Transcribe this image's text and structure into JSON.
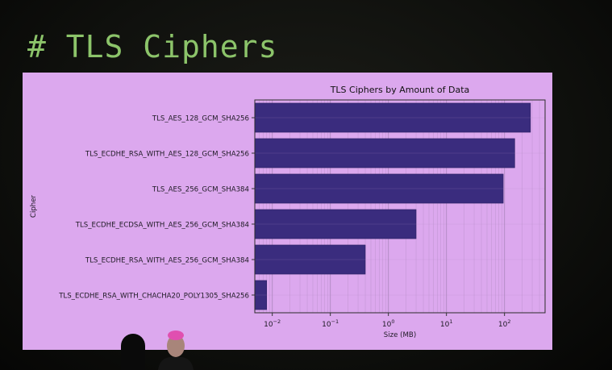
{
  "slide": {
    "title": "# TLS Ciphers"
  },
  "colors": {
    "title_green": "#8cc46a",
    "panel_bg": "#dca8ee",
    "bar_fill": "#3a2c7e",
    "grid": "#b08ac0"
  },
  "chart_data": {
    "type": "bar",
    "orientation": "horizontal",
    "title": "TLS Ciphers by Amount of Data",
    "xlabel": "Size (MB)",
    "ylabel": "Cipher",
    "x_scale": "log",
    "xlim": [
      0.005,
      500
    ],
    "x_ticks": [
      {
        "value": 0.01,
        "base": "10",
        "exp": "−2"
      },
      {
        "value": 0.1,
        "base": "10",
        "exp": "−1"
      },
      {
        "value": 1,
        "base": "10",
        "exp": "0"
      },
      {
        "value": 10,
        "base": "10",
        "exp": "1"
      },
      {
        "value": 100,
        "base": "10",
        "exp": "2"
      }
    ],
    "grid": true,
    "categories": [
      "TLS_AES_128_GCM_SHA256",
      "TLS_ECDHE_RSA_WITH_AES_128_GCM_SHA256",
      "TLS_AES_256_GCM_SHA384",
      "TLS_ECDHE_ECDSA_WITH_AES_256_GCM_SHA384",
      "TLS_ECDHE_RSA_WITH_AES_256_GCM_SHA384",
      "TLS_ECDHE_RSA_WITH_CHACHA20_POLY1305_SHA256"
    ],
    "values": [
      280,
      150,
      95,
      3,
      0.4,
      0.008
    ]
  }
}
